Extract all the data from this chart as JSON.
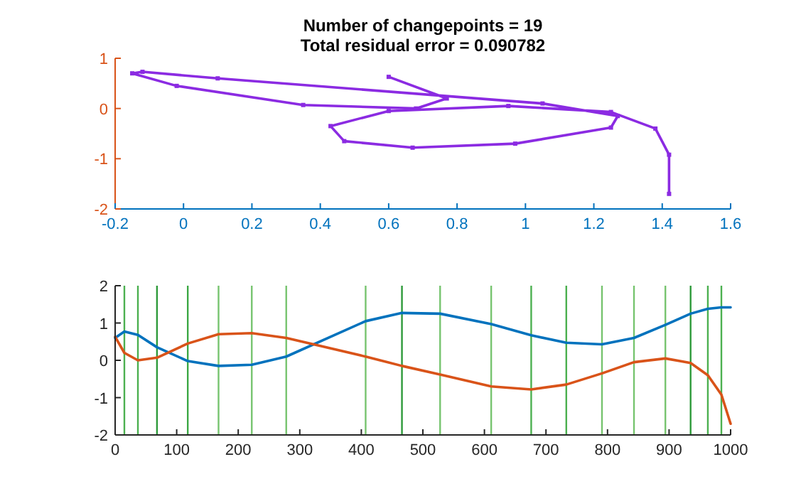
{
  "chart_data": [
    {
      "type": "line",
      "title": "Number of changepoints = 19",
      "subtitle": "Total residual error = 0.090782",
      "marker": "square",
      "xlim": [
        -0.2,
        1.6
      ],
      "xticks": [
        -0.2,
        0,
        0.2,
        0.4,
        0.6,
        0.8,
        1,
        1.2,
        1.4,
        1.6
      ],
      "ylim": [
        -2,
        1
      ],
      "yticks": [
        -2,
        -1,
        0,
        1
      ],
      "series": [
        {
          "color": "#8b2be2",
          "x": [
            0.6,
            0.77,
            0.68,
            0.35,
            -0.02,
            -0.15,
            -0.12,
            0.1,
            1.05,
            1.27,
            1.25,
            0.97,
            0.67,
            0.47,
            0.43,
            0.6,
            0.95,
            1.25,
            1.38,
            1.42,
            1.42
          ],
          "values": [
            0.63,
            0.2,
            0.0,
            0.07,
            0.45,
            0.7,
            0.73,
            0.6,
            0.1,
            -0.15,
            -0.38,
            -0.7,
            -0.78,
            -0.65,
            -0.35,
            -0.05,
            0.05,
            -0.07,
            -0.4,
            -0.92,
            -1.7
          ]
        }
      ]
    },
    {
      "type": "line",
      "xlim": [
        0,
        1000
      ],
      "xticks": [
        0,
        100,
        200,
        300,
        400,
        500,
        600,
        700,
        800,
        900,
        1000
      ],
      "ylim": [
        -2,
        2
      ],
      "yticks": [
        -2,
        -1,
        0,
        1,
        2
      ],
      "series": [
        {
          "color": "#0072bd",
          "x": [
            0,
            15,
            37,
            68,
            118,
            168,
            222,
            278,
            407,
            466,
            528,
            611,
            676,
            733,
            791,
            843,
            894,
            935,
            963,
            985,
            1000
          ],
          "values": [
            0.6,
            0.77,
            0.68,
            0.35,
            -0.02,
            -0.15,
            -0.12,
            0.1,
            1.05,
            1.27,
            1.25,
            0.97,
            0.67,
            0.47,
            0.43,
            0.6,
            0.95,
            1.25,
            1.38,
            1.42,
            1.42
          ]
        },
        {
          "color": "#d95319",
          "x": [
            0,
            15,
            37,
            68,
            118,
            168,
            222,
            278,
            407,
            466,
            528,
            611,
            676,
            733,
            791,
            843,
            894,
            935,
            963,
            985,
            1000
          ],
          "values": [
            0.63,
            0.2,
            0.0,
            0.07,
            0.45,
            0.7,
            0.73,
            0.6,
            0.1,
            -0.15,
            -0.38,
            -0.7,
            -0.78,
            -0.65,
            -0.35,
            -0.05,
            0.05,
            -0.07,
            -0.4,
            -0.92,
            -1.7
          ]
        }
      ],
      "ref_lines": [
        {
          "axis": "x",
          "value": 15,
          "color": "#4cb050"
        },
        {
          "axis": "x",
          "value": 37,
          "color": "#4cb050"
        },
        {
          "axis": "x",
          "value": 68,
          "color": "#2e9a3a"
        },
        {
          "axis": "x",
          "value": 118,
          "color": "#3ca844"
        },
        {
          "axis": "x",
          "value": 168,
          "color": "#77c46f"
        },
        {
          "axis": "x",
          "value": 222,
          "color": "#77c46f"
        },
        {
          "axis": "x",
          "value": 278,
          "color": "#77c46f"
        },
        {
          "axis": "x",
          "value": 407,
          "color": "#77c46f"
        },
        {
          "axis": "x",
          "value": 466,
          "color": "#2e9a3a"
        },
        {
          "axis": "x",
          "value": 528,
          "color": "#77c46f"
        },
        {
          "axis": "x",
          "value": 611,
          "color": "#77c46f"
        },
        {
          "axis": "x",
          "value": 676,
          "color": "#4cb050"
        },
        {
          "axis": "x",
          "value": 733,
          "color": "#4cb050"
        },
        {
          "axis": "x",
          "value": 791,
          "color": "#77c46f"
        },
        {
          "axis": "x",
          "value": 843,
          "color": "#77c46f"
        },
        {
          "axis": "x",
          "value": 894,
          "color": "#77c46f"
        },
        {
          "axis": "x",
          "value": 935,
          "color": "#2e9a3a"
        },
        {
          "axis": "x",
          "value": 963,
          "color": "#4cb050"
        },
        {
          "axis": "x",
          "value": 985,
          "color": "#4cb050"
        }
      ]
    }
  ]
}
